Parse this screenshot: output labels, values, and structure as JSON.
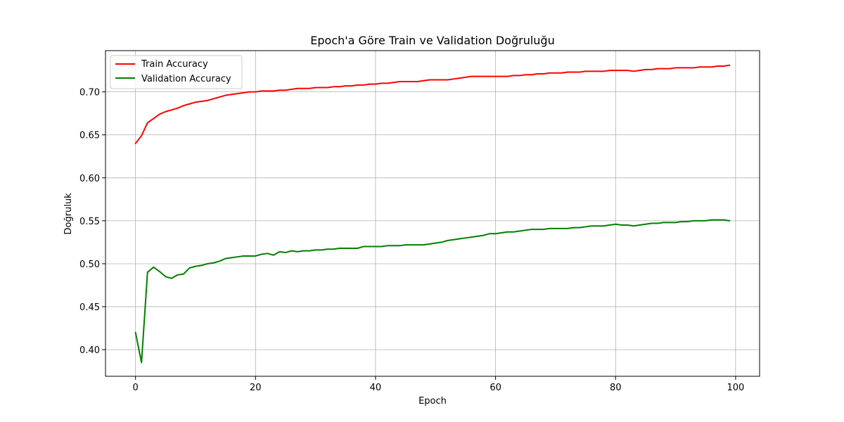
{
  "chart_data": {
    "type": "line",
    "title": "Epoch'a Göre Train ve Validation Doğruluğu",
    "xlabel": "Epoch",
    "ylabel": "Doğruluk",
    "xlim": [
      -5,
      104
    ],
    "ylim": [
      0.369,
      0.748
    ],
    "xticks": [
      0,
      20,
      40,
      60,
      80,
      100
    ],
    "yticks": [
      0.4,
      0.45,
      0.5,
      0.55,
      0.6,
      0.65,
      0.7
    ],
    "grid": true,
    "legend_position": "top-left",
    "series": [
      {
        "name": "Train Accuracy",
        "color": "#ff0000",
        "x": [
          0,
          1,
          2,
          3,
          4,
          5,
          6,
          7,
          8,
          9,
          10,
          11,
          12,
          13,
          14,
          15,
          16,
          17,
          18,
          19,
          20,
          21,
          22,
          23,
          24,
          25,
          26,
          27,
          28,
          29,
          30,
          31,
          32,
          33,
          34,
          35,
          36,
          37,
          38,
          39,
          40,
          41,
          42,
          43,
          44,
          45,
          46,
          47,
          48,
          49,
          50,
          51,
          52,
          53,
          54,
          55,
          56,
          57,
          58,
          59,
          60,
          61,
          62,
          63,
          64,
          65,
          66,
          67,
          68,
          69,
          70,
          71,
          72,
          73,
          74,
          75,
          76,
          77,
          78,
          79,
          80,
          81,
          82,
          83,
          84,
          85,
          86,
          87,
          88,
          89,
          90,
          91,
          92,
          93,
          94,
          95,
          96,
          97,
          98,
          99
        ],
        "values": [
          0.64,
          0.649,
          0.664,
          0.669,
          0.674,
          0.677,
          0.679,
          0.681,
          0.684,
          0.686,
          0.688,
          0.689,
          0.69,
          0.692,
          0.694,
          0.696,
          0.697,
          0.698,
          0.699,
          0.7,
          0.7,
          0.701,
          0.701,
          0.701,
          0.702,
          0.702,
          0.703,
          0.704,
          0.704,
          0.704,
          0.705,
          0.705,
          0.705,
          0.706,
          0.706,
          0.707,
          0.707,
          0.708,
          0.708,
          0.709,
          0.709,
          0.71,
          0.71,
          0.711,
          0.712,
          0.712,
          0.712,
          0.712,
          0.713,
          0.714,
          0.714,
          0.714,
          0.714,
          0.715,
          0.716,
          0.717,
          0.718,
          0.718,
          0.718,
          0.718,
          0.718,
          0.718,
          0.718,
          0.719,
          0.719,
          0.72,
          0.72,
          0.721,
          0.721,
          0.722,
          0.722,
          0.722,
          0.723,
          0.723,
          0.723,
          0.724,
          0.724,
          0.724,
          0.724,
          0.725,
          0.725,
          0.725,
          0.725,
          0.724,
          0.725,
          0.726,
          0.726,
          0.727,
          0.727,
          0.727,
          0.728,
          0.728,
          0.728,
          0.728,
          0.729,
          0.729,
          0.729,
          0.73,
          0.73,
          0.731
        ]
      },
      {
        "name": "Validation Accuracy",
        "color": "#008000",
        "x": [
          0,
          1,
          2,
          3,
          4,
          5,
          6,
          7,
          8,
          9,
          10,
          11,
          12,
          13,
          14,
          15,
          16,
          17,
          18,
          19,
          20,
          21,
          22,
          23,
          24,
          25,
          26,
          27,
          28,
          29,
          30,
          31,
          32,
          33,
          34,
          35,
          36,
          37,
          38,
          39,
          40,
          41,
          42,
          43,
          44,
          45,
          46,
          47,
          48,
          49,
          50,
          51,
          52,
          53,
          54,
          55,
          56,
          57,
          58,
          59,
          60,
          61,
          62,
          63,
          64,
          65,
          66,
          67,
          68,
          69,
          70,
          71,
          72,
          73,
          74,
          75,
          76,
          77,
          78,
          79,
          80,
          81,
          82,
          83,
          84,
          85,
          86,
          87,
          88,
          89,
          90,
          91,
          92,
          93,
          94,
          95,
          96,
          97,
          98,
          99
        ],
        "values": [
          0.42,
          0.385,
          0.49,
          0.496,
          0.491,
          0.485,
          0.483,
          0.487,
          0.488,
          0.495,
          0.497,
          0.498,
          0.5,
          0.501,
          0.503,
          0.506,
          0.507,
          0.508,
          0.509,
          0.509,
          0.509,
          0.511,
          0.512,
          0.51,
          0.514,
          0.513,
          0.515,
          0.514,
          0.515,
          0.515,
          0.516,
          0.516,
          0.517,
          0.517,
          0.518,
          0.518,
          0.518,
          0.518,
          0.52,
          0.52,
          0.52,
          0.52,
          0.521,
          0.521,
          0.521,
          0.522,
          0.522,
          0.522,
          0.522,
          0.523,
          0.524,
          0.525,
          0.527,
          0.528,
          0.529,
          0.53,
          0.531,
          0.532,
          0.533,
          0.535,
          0.535,
          0.536,
          0.537,
          0.537,
          0.538,
          0.539,
          0.54,
          0.54,
          0.54,
          0.541,
          0.541,
          0.541,
          0.541,
          0.542,
          0.542,
          0.543,
          0.544,
          0.544,
          0.544,
          0.545,
          0.546,
          0.545,
          0.545,
          0.544,
          0.545,
          0.546,
          0.547,
          0.547,
          0.548,
          0.548,
          0.548,
          0.549,
          0.549,
          0.55,
          0.55,
          0.55,
          0.551,
          0.551,
          0.551,
          0.55
        ]
      }
    ]
  }
}
